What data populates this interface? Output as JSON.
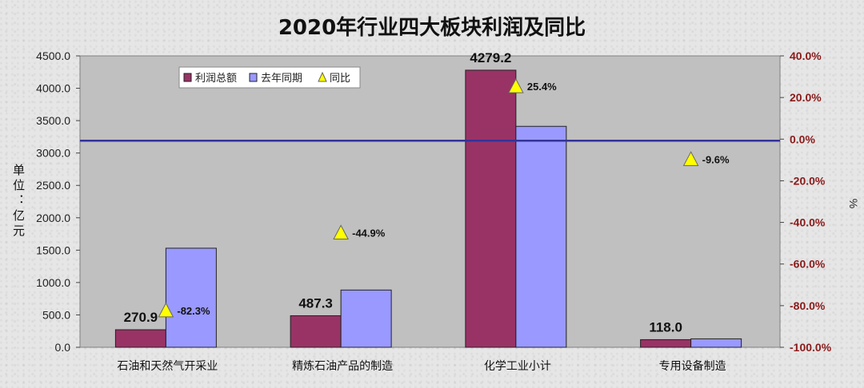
{
  "chart_data": {
    "type": "bar",
    "title": "2020年行业四大板块利润及同比",
    "categories": [
      "石油和天然气开采业",
      "精炼石油产品的制造",
      "化学工业小计",
      "专用设备制造"
    ],
    "series": [
      {
        "name": "利润总额",
        "axis": "left",
        "color": "#993366",
        "values": [
          270.9,
          487.3,
          4279.2,
          118.0
        ],
        "labels": [
          "270.9",
          "487.3",
          "4279.2",
          "118.0"
        ]
      },
      {
        "name": "去年同期",
        "axis": "left",
        "color": "#9999ff",
        "values": [
          1530,
          884,
          3412,
          130.5
        ]
      },
      {
        "name": "同比",
        "axis": "right",
        "marker": "triangle",
        "color": "#ffff00",
        "values": [
          -82.3,
          -44.9,
          25.4,
          -9.6
        ],
        "labels": [
          "-82.3%",
          "-44.9%",
          "25.4%",
          "-9.6%"
        ]
      }
    ],
    "ylabel": "单位：亿元",
    "ylim": [
      0,
      4500
    ],
    "yticks": [
      "0.0",
      "500.0",
      "1000.0",
      "1500.0",
      "2000.0",
      "2500.0",
      "3000.0",
      "3500.0",
      "4000.0",
      "4500.0"
    ],
    "y2label": "%",
    "y2lim": [
      -100,
      40
    ],
    "y2ticks": [
      "-100.0%",
      "-80.0%",
      "-60.0%",
      "-40.0%",
      "-20.0%",
      "0.0%",
      "20.0%",
      "40.0%"
    ],
    "reference_line": {
      "axis": "right",
      "value": 0,
      "color": "#333399"
    },
    "grid": false,
    "legend": "top-left",
    "plot_background": "#c0c0c0"
  }
}
